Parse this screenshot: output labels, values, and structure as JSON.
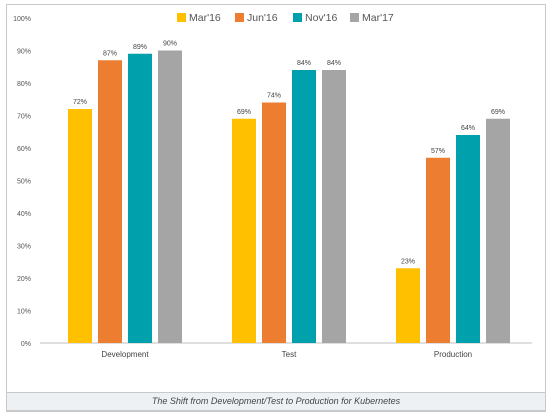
{
  "chart_data": {
    "type": "bar",
    "categories": [
      "Development",
      "Test",
      "Production"
    ],
    "series": [
      {
        "name": "Mar'16",
        "color": "#FFC000",
        "values": [
          72,
          69,
          23
        ]
      },
      {
        "name": "Jun'16",
        "color": "#ED7D31",
        "values": [
          87,
          74,
          57
        ]
      },
      {
        "name": "Nov'16",
        "color": "#00A0AC",
        "values": [
          89,
          84,
          64
        ]
      },
      {
        "name": "Mar'17",
        "color": "#A5A5A5",
        "values": [
          90,
          84,
          69
        ]
      }
    ],
    "ylim": [
      0,
      100
    ],
    "yticks": [
      "0%",
      "10%",
      "20%",
      "30%",
      "40%",
      "50%",
      "60%",
      "70%",
      "80%",
      "90%",
      "100%"
    ],
    "value_suffix": "%",
    "legend_position": "top",
    "grid": false
  },
  "caption": "The Shift from Development/Test to Production for Kubernetes"
}
